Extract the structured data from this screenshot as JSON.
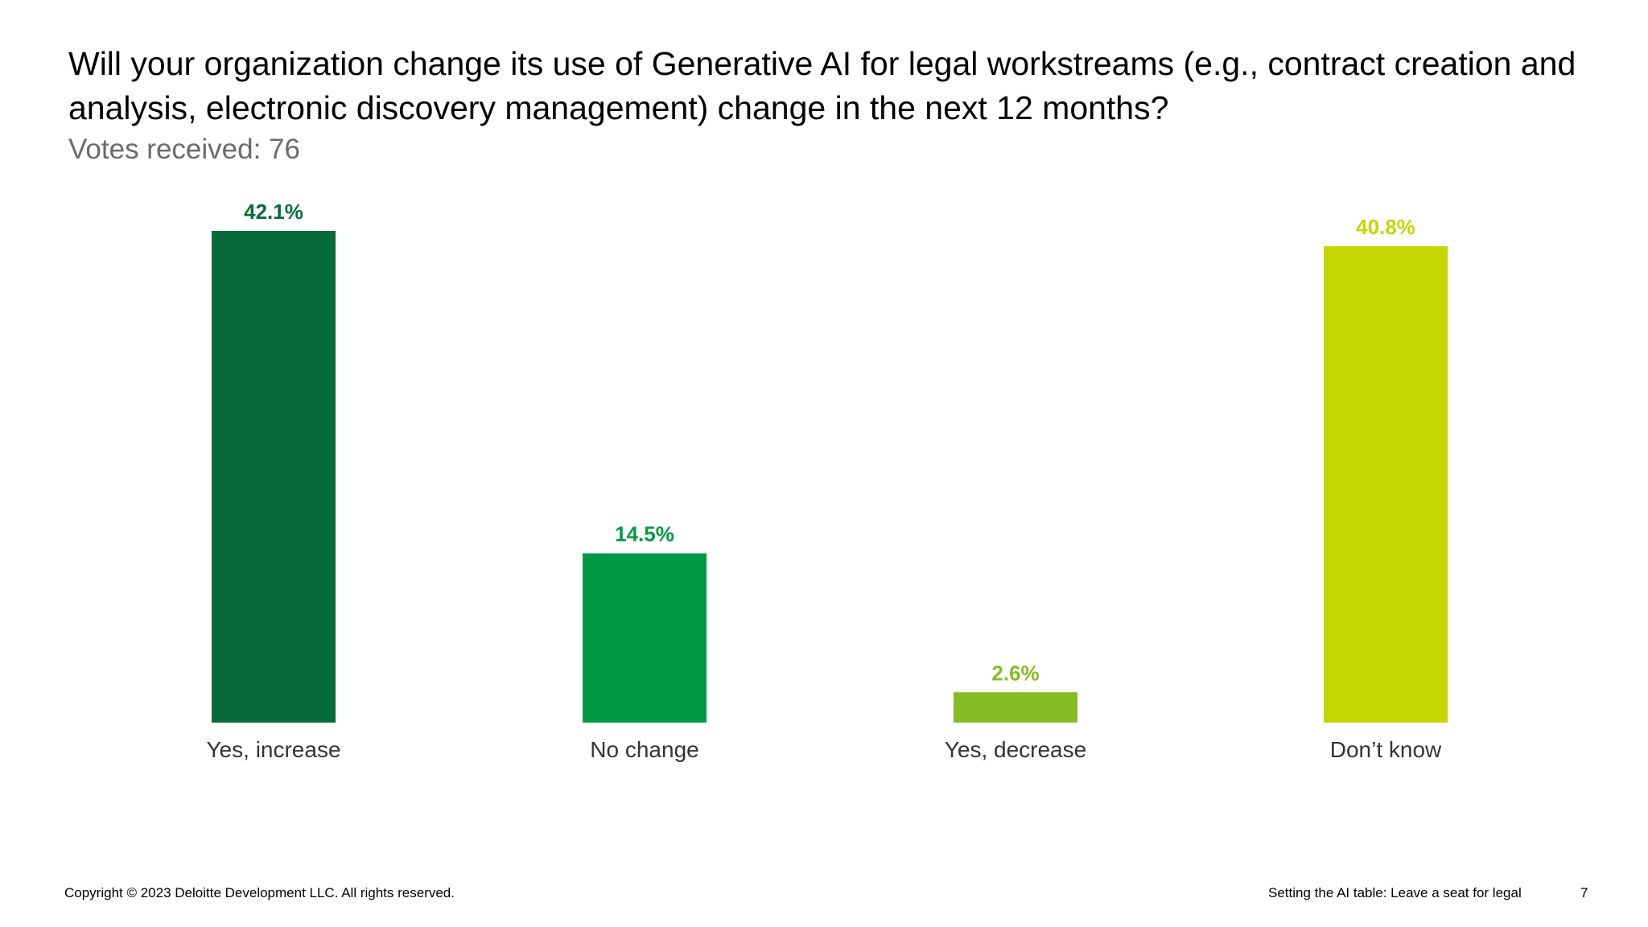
{
  "slide": {
    "title": "Will your organization change its use of Generative AI for legal workstreams (e.g., contract creation and analysis, electronic discovery management) change in the next 12 months?",
    "subtitle": "Votes received: 76"
  },
  "chart_data": {
    "type": "bar",
    "categories": [
      "Yes, increase",
      "No change",
      "Yes, decrease",
      "Don’t know"
    ],
    "values": [
      42.1,
      14.5,
      2.6,
      40.8
    ],
    "value_labels": [
      "42.1%",
      "14.5%",
      "2.6%",
      "40.8%"
    ],
    "colors": [
      "#086B3A",
      "#009A44",
      "#86BC25",
      "#C4D600"
    ],
    "title": "",
    "xlabel": "",
    "ylabel": "",
    "ylim": [
      0,
      42.1
    ],
    "grid": false,
    "legend": "none"
  },
  "footer": {
    "copyright": "Copyright © 2023 Deloitte Development LLC. All rights reserved.",
    "deck_title": "Setting the AI table: Leave a seat for legal",
    "page_number": "7"
  }
}
